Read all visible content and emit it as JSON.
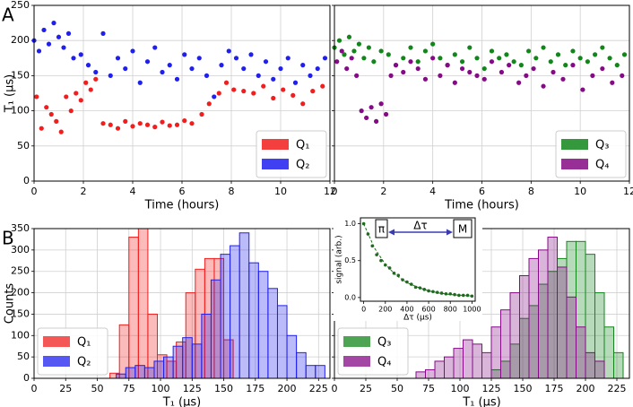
{
  "chart_data": [
    {
      "type": "scatter",
      "panel_label": "A",
      "xlabel": "Time (hours)",
      "ylabel": "T₁ (μs)",
      "xlim": [
        0,
        12
      ],
      "xticks": [
        0,
        2,
        4,
        6,
        8,
        10,
        12
      ],
      "ylim": [
        0,
        250
      ],
      "yticks": [
        0,
        50,
        100,
        150,
        200,
        250
      ],
      "grid": true,
      "legend": "lower right",
      "ytick_labels": true,
      "series": [
        {
          "name": "Q₁",
          "color": "#f21d1d",
          "x": [
            0.1,
            0.3,
            0.5,
            0.7,
            0.9,
            1.1,
            1.3,
            1.5,
            1.7,
            1.9,
            2.1,
            2.3,
            2.5,
            2.8,
            3.1,
            3.4,
            3.7,
            4.0,
            4.3,
            4.6,
            4.9,
            5.2,
            5.5,
            5.8,
            6.1,
            6.4,
            6.8,
            7.1,
            7.5,
            7.8,
            8.1,
            8.5,
            8.9,
            9.3,
            9.7,
            10.1,
            10.5,
            10.9,
            11.3,
            11.7
          ],
          "values": [
            120,
            75,
            105,
            95,
            85,
            70,
            120,
            100,
            125,
            115,
            140,
            130,
            145,
            82,
            80,
            75,
            85,
            78,
            82,
            80,
            77,
            84,
            79,
            80,
            86,
            82,
            95,
            110,
            125,
            140,
            130,
            128,
            125,
            135,
            118,
            130,
            122,
            110,
            128,
            135
          ]
        },
        {
          "name": "Q₂",
          "color": "#1f1ff0",
          "x": [
            0.0,
            0.2,
            0.4,
            0.6,
            0.8,
            1.0,
            1.2,
            1.4,
            1.6,
            1.9,
            2.2,
            2.5,
            2.8,
            3.1,
            3.4,
            3.7,
            4.0,
            4.3,
            4.6,
            4.9,
            5.2,
            5.5,
            5.8,
            6.1,
            6.4,
            6.7,
            7.0,
            7.3,
            7.6,
            7.9,
            8.2,
            8.5,
            8.8,
            9.1,
            9.4,
            9.7,
            10.0,
            10.3,
            10.6,
            10.9,
            11.2,
            11.5,
            11.8
          ],
          "values": [
            200,
            185,
            215,
            195,
            225,
            205,
            190,
            210,
            175,
            180,
            165,
            155,
            210,
            150,
            175,
            160,
            185,
            140,
            170,
            190,
            155,
            165,
            145,
            180,
            160,
            175,
            150,
            120,
            165,
            185,
            175,
            160,
            180,
            150,
            170,
            145,
            160,
            175,
            140,
            165,
            150,
            160,
            175
          ]
        }
      ]
    },
    {
      "type": "scatter",
      "xlabel": "Time (hours)",
      "xlim": [
        0,
        12
      ],
      "xticks": [
        0,
        2,
        4,
        6,
        8,
        10,
        12
      ],
      "ylim": [
        0,
        250
      ],
      "yticks": [
        0,
        50,
        100,
        150,
        200,
        250
      ],
      "grid": true,
      "legend": "lower right",
      "ytick_labels": false,
      "series": [
        {
          "name": "Q₃",
          "color": "#12861a",
          "x": [
            0.0,
            0.2,
            0.4,
            0.6,
            0.8,
            1.0,
            1.2,
            1.4,
            1.6,
            1.9,
            2.2,
            2.5,
            2.8,
            3.1,
            3.4,
            3.7,
            4.0,
            4.3,
            4.6,
            4.9,
            5.2,
            5.5,
            5.8,
            6.1,
            6.4,
            6.7,
            7.0,
            7.3,
            7.6,
            7.9,
            8.2,
            8.5,
            8.8,
            9.1,
            9.4,
            9.7,
            10.0,
            10.3,
            10.6,
            10.9,
            11.2,
            11.5,
            11.8
          ],
          "values": [
            190,
            200,
            180,
            205,
            185,
            195,
            175,
            190,
            170,
            185,
            180,
            165,
            175,
            190,
            170,
            185,
            195,
            175,
            165,
            180,
            170,
            190,
            175,
            160,
            185,
            175,
            180,
            170,
            165,
            185,
            175,
            190,
            170,
            180,
            165,
            185,
            175,
            170,
            180,
            190,
            175,
            165,
            180
          ]
        },
        {
          "name": "Q₄",
          "color": "#850a85",
          "x": [
            0.1,
            0.3,
            0.5,
            0.7,
            0.9,
            1.1,
            1.3,
            1.5,
            1.7,
            1.9,
            2.1,
            2.3,
            2.5,
            2.8,
            3.1,
            3.4,
            3.7,
            4.0,
            4.3,
            4.6,
            4.9,
            5.2,
            5.5,
            5.8,
            6.1,
            6.4,
            6.8,
            7.1,
            7.5,
            7.8,
            8.1,
            8.5,
            8.9,
            9.3,
            9.7,
            10.1,
            10.5,
            10.9,
            11.3,
            11.7
          ],
          "values": [
            170,
            185,
            160,
            175,
            150,
            100,
            90,
            105,
            85,
            110,
            95,
            150,
            165,
            155,
            170,
            160,
            145,
            175,
            150,
            165,
            140,
            160,
            155,
            150,
            145,
            170,
            155,
            165,
            140,
            150,
            160,
            135,
            155,
            145,
            165,
            130,
            150,
            160,
            140,
            150
          ]
        }
      ]
    },
    {
      "type": "histogram",
      "panel_label": "B",
      "xlabel": "T₁ (μs)",
      "ylabel": "Counts",
      "xlim": [
        0,
        234
      ],
      "xticks": [
        0,
        25,
        50,
        75,
        100,
        125,
        150,
        175,
        200,
        225
      ],
      "ylim": [
        0,
        350
      ],
      "yticks": [
        0,
        50,
        100,
        150,
        200,
        250,
        300,
        350
      ],
      "grid": true,
      "legend": "lower left",
      "ytick_labels": true,
      "series": [
        {
          "name": "Q₁",
          "color": "#f21d1d",
          "bins": [
            60,
            67.5,
            75,
            82.5,
            90,
            97.5,
            105,
            112.5,
            120,
            127.5,
            135,
            142.5,
            150,
            157.5
          ],
          "values": [
            12,
            125,
            330,
            350,
            150,
            55,
            40,
            85,
            200,
            255,
            280,
            280,
            90
          ]
        },
        {
          "name": "Q₂",
          "color": "#1f1ff0",
          "bins": [
            65,
            72.5,
            80,
            87.5,
            95,
            102.5,
            110,
            117.5,
            125,
            132.5,
            140,
            147.5,
            155,
            162.5,
            170,
            177.5,
            185,
            192.5,
            200,
            207.5,
            215,
            222.5,
            230
          ],
          "values": [
            10,
            25,
            30,
            25,
            40,
            50,
            75,
            95,
            80,
            150,
            230,
            290,
            310,
            340,
            270,
            250,
            210,
            170,
            100,
            60,
            30,
            30
          ]
        }
      ]
    },
    {
      "type": "histogram",
      "xlabel": "T₁ (μs)",
      "xlim": [
        0,
        235
      ],
      "xticks": [
        0,
        25,
        50,
        75,
        100,
        125,
        150,
        175,
        200,
        225
      ],
      "ylim": [
        0,
        350
      ],
      "yticks": [
        0,
        50,
        100,
        150,
        200,
        250,
        300,
        350
      ],
      "grid": true,
      "legend": "lower left",
      "ytick_labels": false,
      "series": [
        {
          "name": "Q₃",
          "color": "#12861a",
          "bins": [
            125,
            132.5,
            140,
            147.5,
            155,
            162.5,
            170,
            177.5,
            185,
            192.5,
            200,
            207.5,
            215,
            222.5,
            230
          ],
          "values": [
            20,
            40,
            80,
            140,
            170,
            220,
            250,
            280,
            320,
            320,
            290,
            200,
            120,
            60
          ]
        },
        {
          "name": "Q₄",
          "color": "#850a85",
          "bins": [
            65,
            72.5,
            80,
            87.5,
            95,
            102.5,
            110,
            117.5,
            125,
            132.5,
            140,
            147.5,
            155,
            162.5,
            170,
            177.5,
            185,
            192.5,
            200,
            207.5,
            215
          ],
          "values": [
            15,
            20,
            40,
            50,
            70,
            90,
            80,
            60,
            120,
            160,
            200,
            240,
            280,
            300,
            330,
            260,
            190,
            120,
            60,
            40
          ]
        }
      ]
    },
    {
      "type": "decay",
      "xlabel": "Δτ (μs)",
      "ylabel": "signal (arb.)",
      "xlim": [
        -30,
        1030
      ],
      "xticks": [
        0,
        200,
        400,
        600,
        800,
        1000
      ],
      "ylim": [
        -0.05,
        1.08
      ],
      "yticks": [
        {
          "value": 0,
          "label": "0.0"
        },
        0.5,
        {
          "value": 1,
          "label": "1.0"
        }
      ],
      "grid": false,
      "ytick_labels": true,
      "color": "#1e6b1e",
      "annotations": [
        "π",
        "Δτ",
        "M"
      ],
      "points": {
        "x": [
          0,
          40,
          80,
          120,
          160,
          200,
          240,
          280,
          320,
          360,
          400,
          440,
          480,
          520,
          560,
          600,
          640,
          680,
          720,
          760,
          800,
          840,
          880,
          920,
          960,
          1000
        ],
        "values": [
          1.0,
          0.86,
          0.7,
          0.58,
          0.5,
          0.44,
          0.4,
          0.33,
          0.3,
          0.24,
          0.21,
          0.18,
          0.14,
          0.13,
          0.11,
          0.09,
          0.08,
          0.07,
          0.06,
          0.05,
          0.05,
          0.04,
          0.03,
          0.03,
          0.03,
          0.02
        ]
      },
      "fit": {
        "x": [
          0,
          100,
          200,
          300,
          400,
          500,
          600,
          700,
          800,
          900,
          1000
        ],
        "values": [
          1.0,
          0.67,
          0.45,
          0.3,
          0.2,
          0.14,
          0.09,
          0.06,
          0.04,
          0.03,
          0.02
        ]
      }
    }
  ]
}
